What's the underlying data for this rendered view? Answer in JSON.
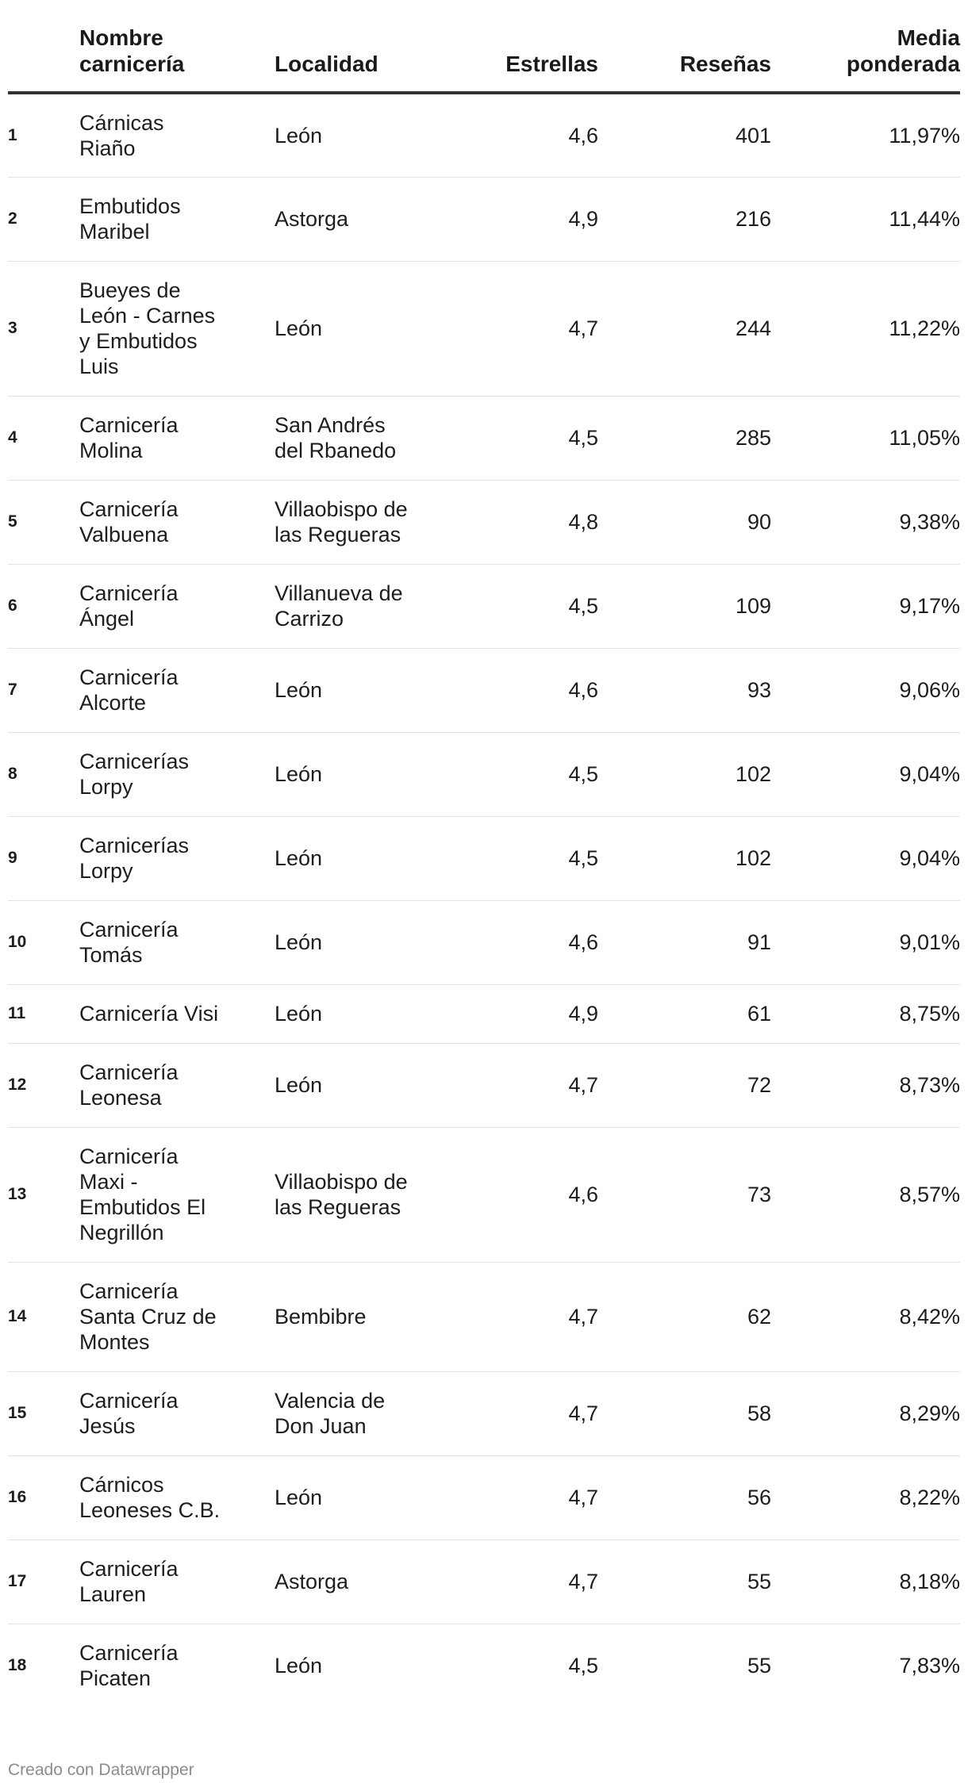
{
  "chart_data": {
    "type": "table",
    "columns": [
      "",
      "Nombre carnicería",
      "Localidad",
      "Estrellas",
      "Reseñas",
      "Media ponderada"
    ],
    "header_lines": {
      "name": [
        "Nombre",
        "carnicería"
      ],
      "locality": "Localidad",
      "stars": "Estrellas",
      "reviews": "Reseñas",
      "weighted": [
        "Media",
        "ponderada"
      ]
    },
    "rows": [
      {
        "rank": "1",
        "name": [
          "Cárnicas",
          "Riaño"
        ],
        "locality": [
          "León"
        ],
        "stars": "4,6",
        "reviews": "401",
        "weighted": "11,97%",
        "h": 106
      },
      {
        "rank": "2",
        "name": [
          "Embutidos",
          "Maribel"
        ],
        "locality": [
          "Astorga"
        ],
        "stars": "4,9",
        "reviews": "216",
        "weighted": "11,44%",
        "h": 106
      },
      {
        "rank": "3",
        "name": [
          "Bueyes de",
          "León - Carnes",
          "y Embutidos",
          "Luis"
        ],
        "locality": [
          "León"
        ],
        "stars": "4,7",
        "reviews": "244",
        "weighted": "11,22%",
        "h": 170
      },
      {
        "rank": "4",
        "name": [
          "Carnicería",
          "Molina"
        ],
        "locality": [
          "San Andrés",
          "del Rbanedo"
        ],
        "stars": "4,5",
        "reviews": "285",
        "weighted": "11,05%",
        "h": 106
      },
      {
        "rank": "5",
        "name": [
          "Carnicería",
          "Valbuena"
        ],
        "locality": [
          "Villaobispo de",
          "las Regueras"
        ],
        "stars": "4,8",
        "reviews": "90",
        "weighted": "9,38%",
        "h": 106
      },
      {
        "rank": "6",
        "name": [
          "Carnicería",
          "Ángel"
        ],
        "locality": [
          "Villanueva de",
          "Carrizo"
        ],
        "stars": "4,5",
        "reviews": "109",
        "weighted": "9,17%",
        "h": 106
      },
      {
        "rank": "7",
        "name": [
          "Carnicería",
          "Alcorte"
        ],
        "locality": [
          "León"
        ],
        "stars": "4,6",
        "reviews": "93",
        "weighted": "9,06%",
        "h": 106
      },
      {
        "rank": "8",
        "name": [
          "Carnicerías",
          "Lorpy"
        ],
        "locality": [
          "León"
        ],
        "stars": "4,5",
        "reviews": "102",
        "weighted": "9,04%",
        "h": 106
      },
      {
        "rank": "9",
        "name": [
          "Carnicerías",
          "Lorpy"
        ],
        "locality": [
          "León"
        ],
        "stars": "4,5",
        "reviews": "102",
        "weighted": "9,04%",
        "h": 106
      },
      {
        "rank": "10",
        "name": [
          "Carnicería",
          "Tomás"
        ],
        "locality": [
          "León"
        ],
        "stars": "4,6",
        "reviews": "91",
        "weighted": "9,01%",
        "h": 106
      },
      {
        "rank": "11",
        "name": [
          "Carnicería Visi"
        ],
        "locality": [
          "León"
        ],
        "stars": "4,9",
        "reviews": "61",
        "weighted": "8,75%",
        "h": 74
      },
      {
        "rank": "12",
        "name": [
          "Carnicería",
          "Leonesa"
        ],
        "locality": [
          "León"
        ],
        "stars": "4,7",
        "reviews": "72",
        "weighted": "8,73%",
        "h": 106
      },
      {
        "rank": "13",
        "name": [
          "Carnicería",
          "Maxi -",
          "Embutidos El",
          "Negrillón"
        ],
        "locality": [
          "Villaobispo de",
          "las Regueras"
        ],
        "stars": "4,6",
        "reviews": "73",
        "weighted": "8,57%",
        "h": 170
      },
      {
        "rank": "14",
        "name": [
          "Carnicería",
          "Santa Cruz de",
          "Montes"
        ],
        "locality": [
          "Bembibre"
        ],
        "stars": "4,7",
        "reviews": "62",
        "weighted": "8,42%",
        "h": 138
      },
      {
        "rank": "15",
        "name": [
          "Carnicería",
          "Jesús"
        ],
        "locality": [
          "Valencia de",
          "Don Juan"
        ],
        "stars": "4,7",
        "reviews": "58",
        "weighted": "8,29%",
        "h": 106
      },
      {
        "rank": "16",
        "name": [
          "Cárnicos",
          "Leoneses C.B."
        ],
        "locality": [
          "León"
        ],
        "stars": "4,7",
        "reviews": "56",
        "weighted": "8,22%",
        "h": 106
      },
      {
        "rank": "17",
        "name": [
          "Carnicería",
          "Lauren"
        ],
        "locality": [
          "Astorga"
        ],
        "stars": "4,7",
        "reviews": "55",
        "weighted": "8,18%",
        "h": 106
      },
      {
        "rank": "18",
        "name": [
          "Carnicería",
          "Picaten"
        ],
        "locality": [
          "León"
        ],
        "stars": "4,5",
        "reviews": "55",
        "weighted": "7,83%",
        "h": 106
      }
    ]
  },
  "footer": {
    "credit": "Creado con Datawrapper"
  }
}
